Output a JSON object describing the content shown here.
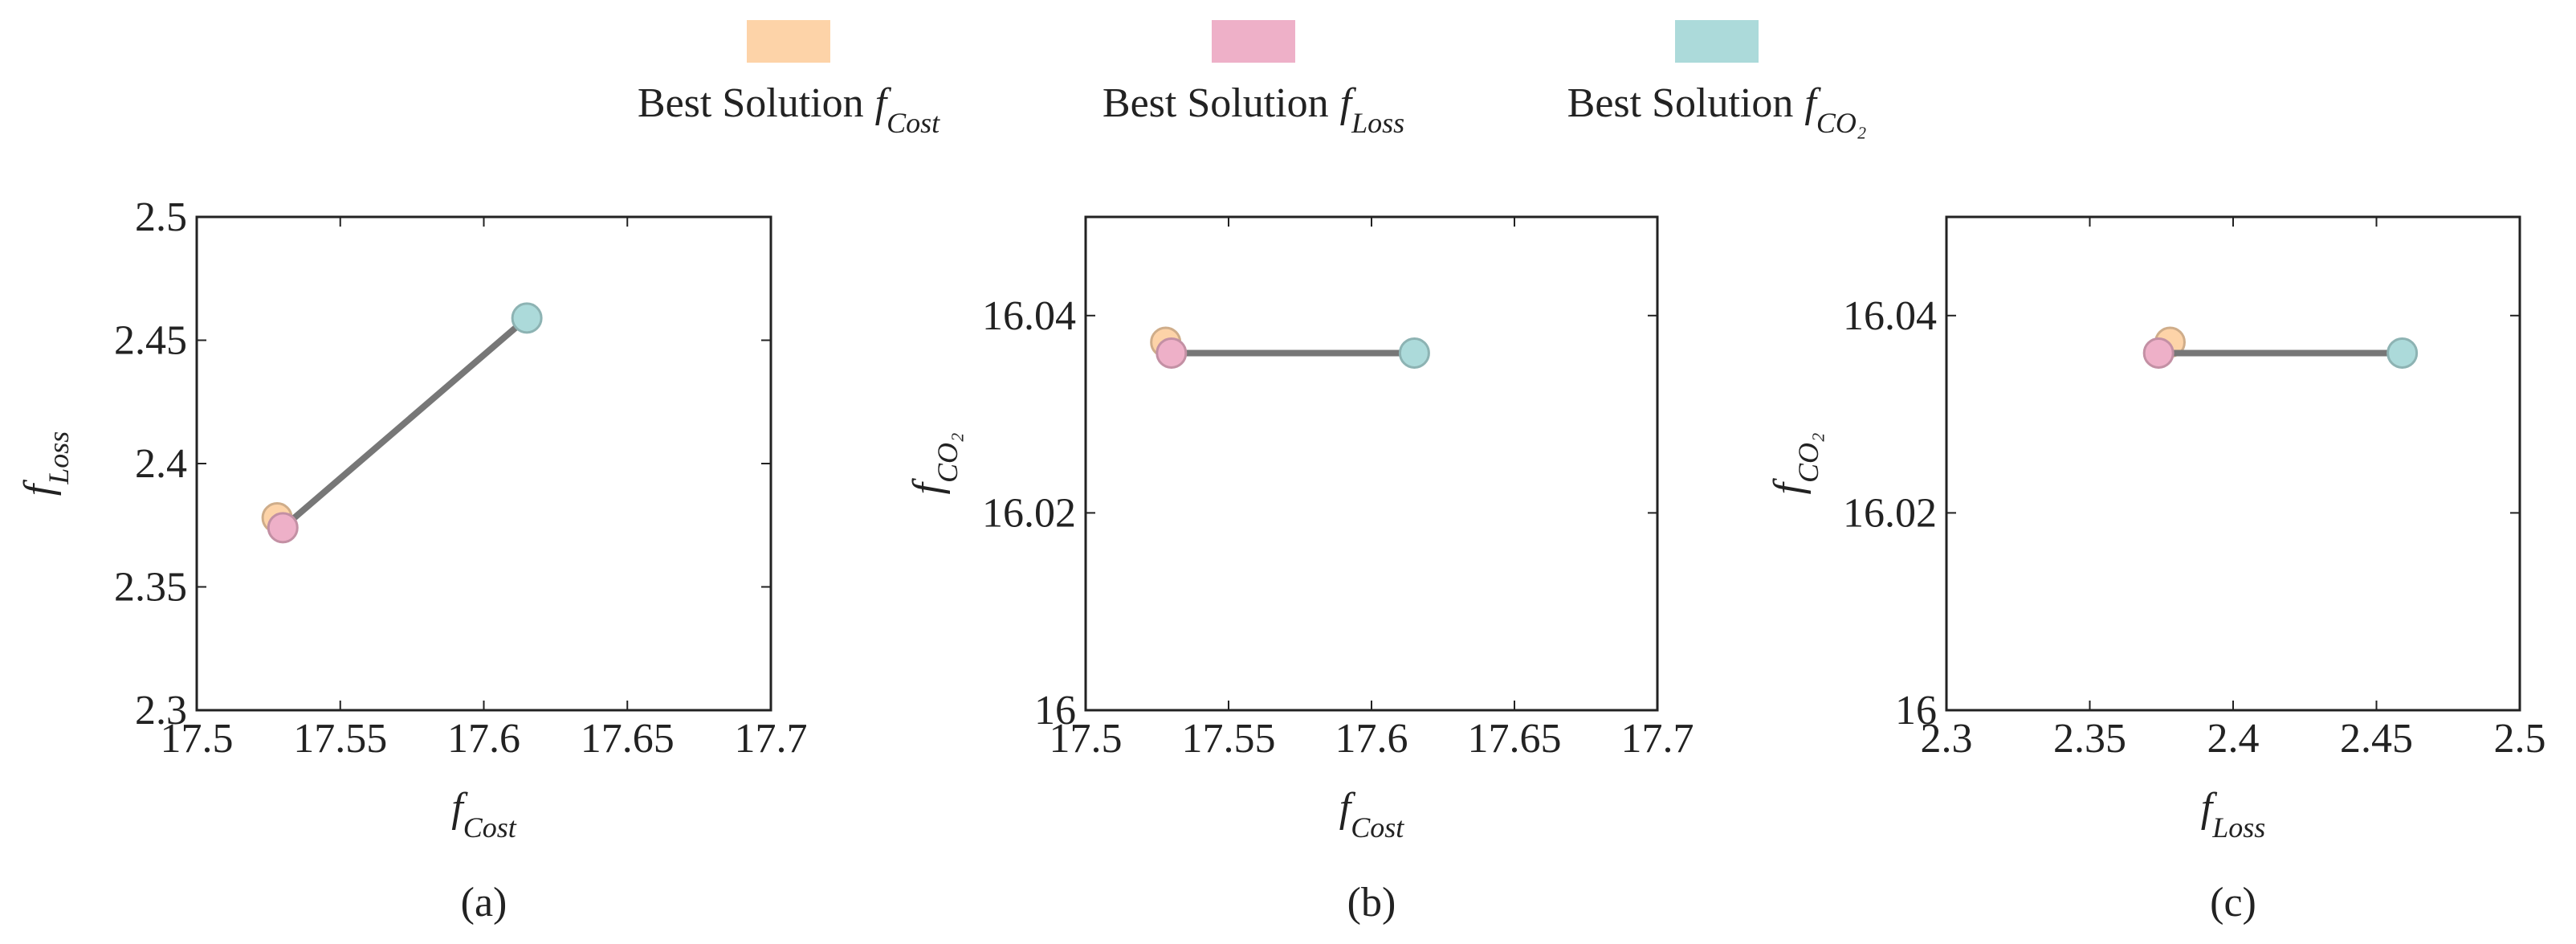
{
  "legend": [
    {
      "label": "Best Solution",
      "symbol": "f",
      "subscript": "Cost",
      "color": "#fdd3a8"
    },
    {
      "label": "Best Solution",
      "symbol": "f",
      "subscript": "Loss",
      "color": "#eeb0c8"
    },
    {
      "label": "Best Solution",
      "symbol": "f",
      "subscript": "CO₂",
      "color": "#acdada"
    }
  ],
  "chart_data": [
    {
      "type": "scatter",
      "caption": "(a)",
      "xlabel": {
        "symbol": "f",
        "subscript": "Cost"
      },
      "ylabel": {
        "symbol": "f",
        "subscript": "Loss"
      },
      "xlim": [
        17.5,
        17.7
      ],
      "xticks": [
        17.5,
        17.55,
        17.6,
        17.65,
        17.7
      ],
      "ylim": [
        2.3,
        2.5
      ],
      "yticks": [
        2.3,
        2.35,
        2.4,
        2.45,
        2.5
      ],
      "series": [
        {
          "type": "scatter",
          "color": "#fdd3a8",
          "x": [
            17.528
          ],
          "values": [
            2.378
          ]
        },
        {
          "type": "line",
          "color": "#777777",
          "x": [
            17.53,
            17.615
          ],
          "values": [
            2.374,
            2.459
          ]
        },
        {
          "type": "scatter",
          "color": "#eeb0c8",
          "x": [
            17.53
          ],
          "values": [
            2.374
          ]
        },
        {
          "type": "scatter",
          "color": "#acdada",
          "x": [
            17.615
          ],
          "values": [
            2.459
          ]
        }
      ]
    },
    {
      "type": "scatter",
      "caption": "(b)",
      "xlabel": {
        "symbol": "f",
        "subscript": "Cost"
      },
      "ylabel": {
        "symbol": "f",
        "subscript": "CO₂"
      },
      "xlim": [
        17.5,
        17.7
      ],
      "xticks": [
        17.5,
        17.55,
        17.6,
        17.65,
        17.7
      ],
      "ylim": [
        16,
        16.05
      ],
      "yticks": [
        16,
        16.02,
        16.04
      ],
      "series": [
        {
          "type": "scatter",
          "color": "#fdd3a8",
          "x": [
            17.528
          ],
          "values": [
            16.0373
          ]
        },
        {
          "type": "line",
          "color": "#777777",
          "x": [
            17.53,
            17.615
          ],
          "values": [
            16.0362,
            16.0362
          ]
        },
        {
          "type": "scatter",
          "color": "#eeb0c8",
          "x": [
            17.53
          ],
          "values": [
            16.0362
          ]
        },
        {
          "type": "scatter",
          "color": "#acdada",
          "x": [
            17.615
          ],
          "values": [
            16.0362
          ]
        }
      ]
    },
    {
      "type": "scatter",
      "caption": "(c)",
      "xlabel": {
        "symbol": "f",
        "subscript": "Loss"
      },
      "ylabel": {
        "symbol": "f",
        "subscript": "CO₂"
      },
      "xlim": [
        2.3,
        2.5
      ],
      "xticks": [
        2.3,
        2.35,
        2.4,
        2.45,
        2.5
      ],
      "ylim": [
        16,
        16.05
      ],
      "yticks": [
        16,
        16.02,
        16.04
      ],
      "series": [
        {
          "type": "scatter",
          "color": "#fdd3a8",
          "x": [
            2.378
          ],
          "values": [
            16.0373
          ]
        },
        {
          "type": "line",
          "color": "#777777",
          "x": [
            2.374,
            2.459
          ],
          "values": [
            16.0362,
            16.0362
          ]
        },
        {
          "type": "scatter",
          "color": "#eeb0c8",
          "x": [
            2.374
          ],
          "values": [
            16.0362
          ]
        },
        {
          "type": "scatter",
          "color": "#acdada",
          "x": [
            2.459
          ],
          "values": [
            16.0362
          ]
        }
      ]
    }
  ]
}
